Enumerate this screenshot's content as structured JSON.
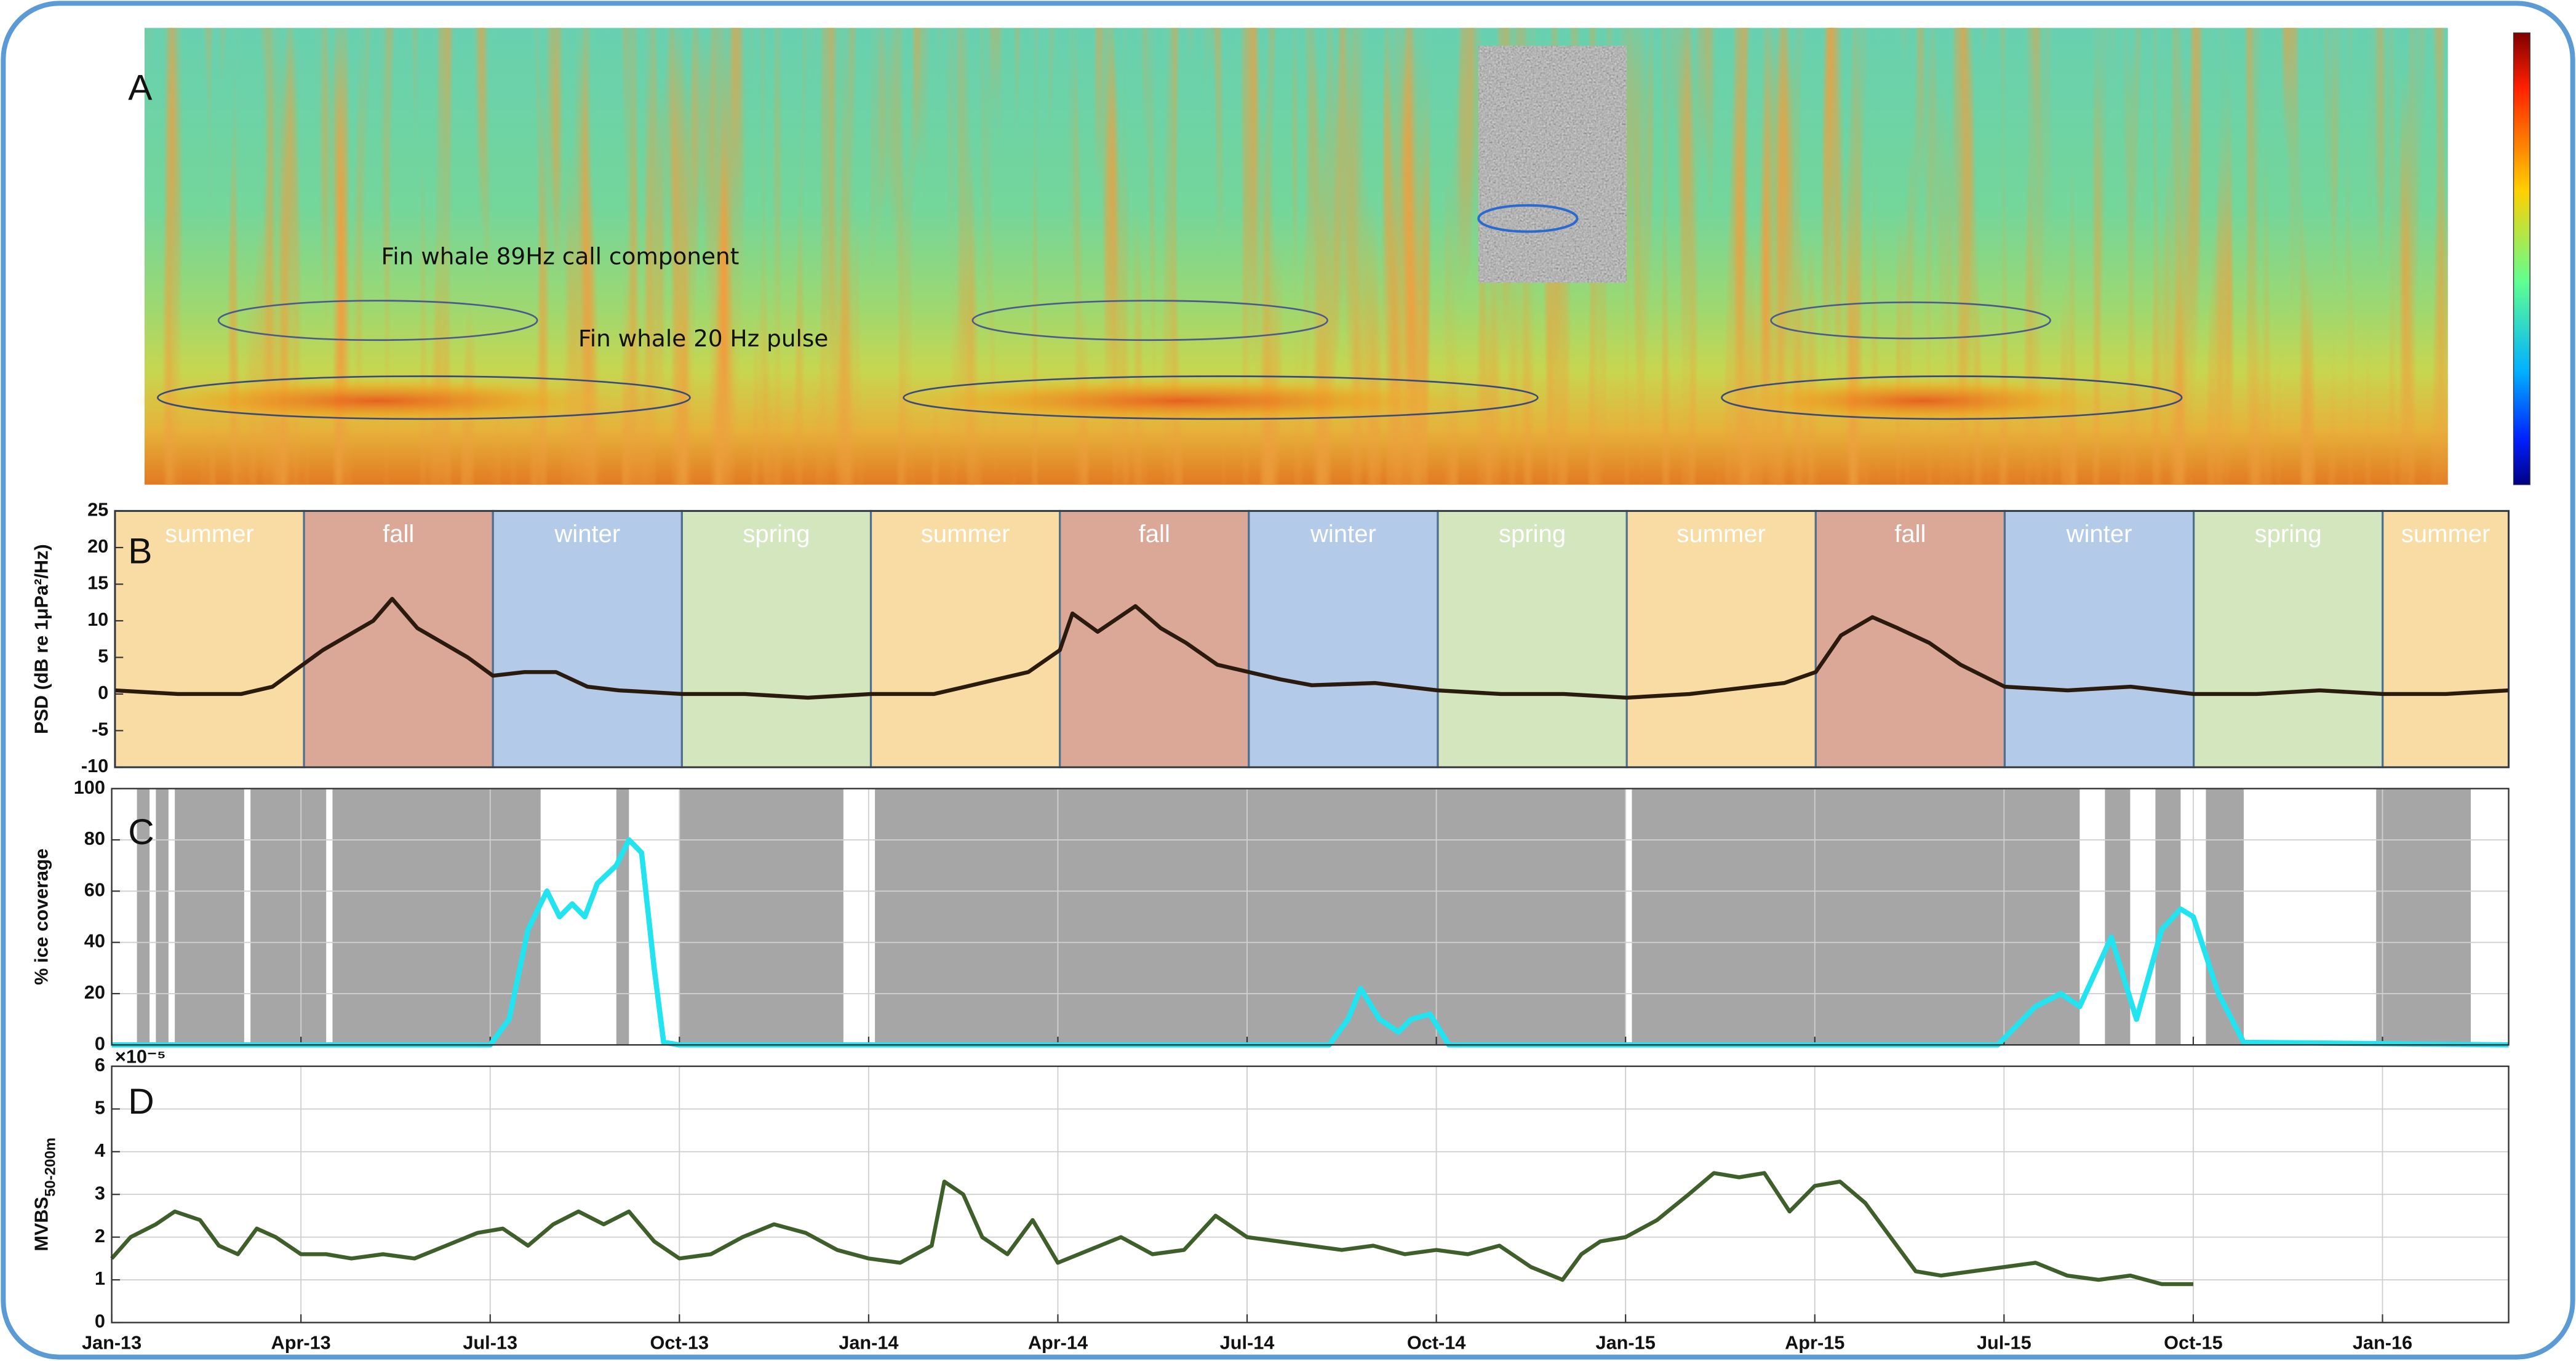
{
  "chart_data": [
    {
      "type": "spectrogram",
      "panel_label": "A",
      "annotations": [
        "Fin whale 89Hz call component",
        "Fin whale 20 Hz pulse"
      ]
    },
    {
      "type": "line",
      "panel_label": "B",
      "ylabel": "PSD (dB re 1μPa²/Hz)",
      "xlim": [
        0,
        38
      ],
      "ylim": [
        -10,
        25
      ],
      "yticks": [
        -10,
        -5,
        0,
        5,
        10,
        15,
        20,
        25
      ],
      "grid": false,
      "bands": [
        {
          "label": "summer",
          "start": 0,
          "end": 3,
          "color": "#f9dca4"
        },
        {
          "label": "fall",
          "start": 3,
          "end": 6,
          "color": "#dba898"
        },
        {
          "label": "winter",
          "start": 6,
          "end": 9,
          "color": "#b3cbe8"
        },
        {
          "label": "spring",
          "start": 9,
          "end": 12,
          "color": "#d3e6bd"
        },
        {
          "label": "summer",
          "start": 12,
          "end": 15,
          "color": "#f9dca4"
        },
        {
          "label": "fall",
          "start": 15,
          "end": 18,
          "color": "#dba898"
        },
        {
          "label": "winter",
          "start": 18,
          "end": 21,
          "color": "#b3cbe8"
        },
        {
          "label": "spring",
          "start": 21,
          "end": 24,
          "color": "#d3e6bd"
        },
        {
          "label": "summer",
          "start": 24,
          "end": 27,
          "color": "#f9dca4"
        },
        {
          "label": "fall",
          "start": 27,
          "end": 30,
          "color": "#dba898"
        },
        {
          "label": "winter",
          "start": 30,
          "end": 33,
          "color": "#b3cbe8"
        },
        {
          "label": "spring",
          "start": 33,
          "end": 36,
          "color": "#d3e6bd"
        },
        {
          "label": "summer",
          "start": 36,
          "end": 38,
          "color": "#f9dca4"
        }
      ],
      "series": [
        {
          "color": "#2b1a0e",
          "x": [
            0,
            1,
            2,
            2.5,
            2.9,
            3.3,
            3.8,
            4.1,
            4.4,
            4.8,
            5.2,
            5.6,
            6,
            6.5,
            7,
            7.5,
            8,
            9,
            10,
            11,
            12,
            13,
            13.5,
            14,
            14.5,
            15,
            15.2,
            15.6,
            16.2,
            16.6,
            17,
            17.5,
            18,
            18.5,
            19,
            20,
            21,
            22,
            23,
            24,
            25,
            26,
            26.5,
            27,
            27.4,
            27.9,
            28.3,
            28.8,
            29.3,
            30,
            31,
            32,
            33,
            34,
            35,
            36,
            37,
            38
          ],
          "values": [
            0.5,
            0,
            0,
            1,
            3.5,
            6,
            8.5,
            10,
            13,
            9,
            7,
            5,
            2.5,
            3,
            3,
            1,
            0.5,
            0,
            0,
            -0.5,
            0,
            0,
            1,
            2,
            3,
            6,
            11,
            8.5,
            12,
            9,
            7,
            4,
            3,
            2,
            1.2,
            1.5,
            0.5,
            0,
            0,
            -0.5,
            0,
            1,
            1.5,
            3,
            8,
            10.5,
            9,
            7,
            4,
            1,
            0.5,
            1,
            0,
            0,
            0.5,
            0,
            0,
            0.5
          ]
        }
      ]
    },
    {
      "type": "line",
      "panel_label": "C",
      "ylabel": "% ice coverage",
      "xlim": [
        0,
        38
      ],
      "ylim": [
        0,
        100
      ],
      "yticks": [
        0,
        20,
        40,
        60,
        80,
        100
      ],
      "xticks": [
        0,
        3,
        6,
        9,
        12,
        15,
        18,
        21,
        24,
        27,
        30,
        33,
        36
      ],
      "grid": true,
      "shade_color": "#a6a6a6",
      "shaded_spans": [
        [
          0.4,
          0.6
        ],
        [
          0.7,
          0.9
        ],
        [
          1.0,
          2.1
        ],
        [
          2.2,
          3.4
        ],
        [
          3.5,
          6.8
        ],
        [
          8.0,
          8.2
        ],
        [
          9.0,
          11.6
        ],
        [
          12.1,
          24.0
        ],
        [
          24.1,
          31.2
        ],
        [
          31.6,
          32.0
        ],
        [
          32.4,
          32.8
        ],
        [
          33.2,
          33.8
        ],
        [
          35.9,
          37.4
        ]
      ],
      "series": [
        {
          "color": "#22e3f0",
          "x": [
            0,
            6,
            6.3,
            6.6,
            6.9,
            7.1,
            7.3,
            7.5,
            7.7,
            8,
            8.2,
            8.4,
            8.6,
            8.75,
            9,
            19.3,
            19.6,
            19.8,
            20.1,
            20.4,
            20.6,
            20.9,
            21.2,
            29.9,
            30.5,
            30.9,
            31.2,
            31.7,
            32.1,
            32.5,
            32.8,
            33,
            33.4,
            33.8,
            38
          ],
          "values": [
            0,
            0,
            10,
            45,
            60,
            50,
            55,
            50,
            63,
            70,
            80,
            75,
            30,
            1,
            0,
            0,
            10,
            22,
            10,
            5,
            10,
            12,
            0,
            0,
            15,
            20,
            15,
            42,
            10,
            45,
            53,
            50,
            20,
            1,
            0
          ]
        }
      ]
    },
    {
      "type": "line",
      "panel_label": "D",
      "ylabel": "MVBS",
      "ylabel_subscript": "50-200m",
      "y_multiplier": "×10⁻⁵",
      "xlim": [
        0,
        38
      ],
      "ylim": [
        0,
        6
      ],
      "yticks": [
        0,
        1,
        2,
        3,
        4,
        5,
        6
      ],
      "grid": true,
      "xticks": [
        {
          "value": 0,
          "label": "Jan-13"
        },
        {
          "value": 3,
          "label": "Apr-13"
        },
        {
          "value": 6,
          "label": "Jul-13"
        },
        {
          "value": 9,
          "label": "Oct-13"
        },
        {
          "value": 12,
          "label": "Jan-14"
        },
        {
          "value": 15,
          "label": "Apr-14"
        },
        {
          "value": 18,
          "label": "Jul-14"
        },
        {
          "value": 21,
          "label": "Oct-14"
        },
        {
          "value": 24,
          "label": "Jan-15"
        },
        {
          "value": 27,
          "label": "Apr-15"
        },
        {
          "value": 30,
          "label": "Jul-15"
        },
        {
          "value": 33,
          "label": "Oct-15"
        },
        {
          "value": 36,
          "label": "Jan-16"
        }
      ],
      "series": [
        {
          "color": "#3e5f2a",
          "x": [
            0,
            0.3,
            0.7,
            1,
            1.4,
            1.7,
            2,
            2.3,
            2.6,
            3,
            3.4,
            3.8,
            4.3,
            4.8,
            5.3,
            5.8,
            6.2,
            6.6,
            7,
            7.4,
            7.8,
            8.2,
            8.6,
            9,
            9.5,
            10,
            10.5,
            11,
            11.5,
            12,
            12.5,
            13,
            13.2,
            13.5,
            13.8,
            14.2,
            14.6,
            15,
            15.5,
            16,
            16.5,
            17,
            17.5,
            18,
            18.5,
            19,
            19.5,
            20,
            20.5,
            21,
            21.5,
            22,
            22.5,
            23,
            23.3,
            23.6,
            24,
            24.5,
            25,
            25.4,
            25.8,
            26.2,
            26.6,
            27,
            27.4,
            27.8,
            28.2,
            28.6,
            29,
            29.5,
            30,
            30.5,
            31,
            31.5,
            32,
            32.5,
            33
          ],
          "values": [
            1.5,
            2.0,
            2.3,
            2.6,
            2.4,
            1.8,
            1.6,
            2.2,
            2.0,
            1.6,
            1.6,
            1.5,
            1.6,
            1.5,
            1.8,
            2.1,
            2.2,
            1.8,
            2.3,
            2.6,
            2.3,
            2.6,
            1.9,
            1.5,
            1.6,
            2.0,
            2.3,
            2.1,
            1.7,
            1.5,
            1.4,
            1.8,
            3.3,
            3.0,
            2.0,
            1.6,
            2.4,
            1.4,
            1.7,
            2.0,
            1.6,
            1.7,
            2.5,
            2.0,
            1.9,
            1.8,
            1.7,
            1.8,
            1.6,
            1.7,
            1.6,
            1.8,
            1.3,
            1.0,
            1.6,
            1.9,
            2.0,
            2.4,
            3.0,
            3.5,
            3.4,
            3.5,
            2.6,
            3.2,
            3.3,
            2.8,
            2.0,
            1.2,
            1.1,
            1.2,
            1.3,
            1.4,
            1.1,
            1.0,
            1.1,
            0.9,
            0.9
          ]
        }
      ]
    }
  ]
}
